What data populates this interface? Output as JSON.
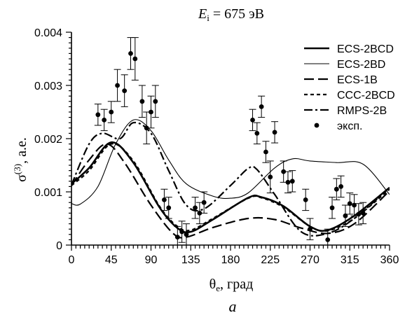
{
  "chart_data": {
    "type": "line",
    "title": {
      "main": "E",
      "sub": "i",
      "rest": " = 675 эВ"
    },
    "xlabel": {
      "main": "θ",
      "sub": "e",
      "rest": ", град"
    },
    "ylabel": {
      "main": "σ",
      "sup": "(3)",
      "rest": ", a.e."
    },
    "caption": "a",
    "xlim": [
      0,
      360
    ],
    "ylim": [
      0,
      0.004
    ],
    "xticks": [
      "0",
      "45",
      "90",
      "135",
      "180",
      "225",
      "270",
      "315",
      "360"
    ],
    "yticks": [
      "0",
      "0.001",
      "0.002",
      "0.003",
      "0.004"
    ],
    "legend_position": "top-right",
    "grid": false,
    "series": [
      {
        "name": "ECS-2BCD",
        "style": "thick-solid",
        "x": [
          0,
          20,
          45,
          70,
          100,
          120,
          135,
          160,
          200,
          215,
          240,
          270,
          290,
          320,
          360
        ],
        "y": [
          0.00115,
          0.00145,
          0.00193,
          0.00155,
          0.0007,
          0.00032,
          0.00025,
          0.00048,
          0.00089,
          0.0009,
          0.00073,
          0.00035,
          0.00028,
          0.00055,
          0.00108
        ]
      },
      {
        "name": "ECS-2BD",
        "style": "thin-solid",
        "x": [
          0,
          10,
          30,
          50,
          70,
          90,
          110,
          130,
          160,
          180,
          200,
          230,
          250,
          270,
          300,
          330,
          360
        ],
        "y": [
          0.00078,
          0.00077,
          0.0011,
          0.0019,
          0.00235,
          0.00215,
          0.0016,
          0.00115,
          0.00092,
          0.00088,
          0.00098,
          0.00145,
          0.00162,
          0.00158,
          0.00155,
          0.00152,
          0.00095
        ]
      },
      {
        "name": "ECS-1B",
        "style": "long-dash",
        "x": [
          0,
          20,
          40,
          60,
          90,
          115,
          130,
          160,
          200,
          230,
          260,
          290,
          320,
          360
        ],
        "y": [
          0.00112,
          0.0016,
          0.0019,
          0.00155,
          0.00075,
          0.00022,
          0.00015,
          0.00033,
          0.0005,
          0.00048,
          0.00032,
          0.00022,
          0.0004,
          0.00102
        ]
      },
      {
        "name": "CCC-2BCD",
        "style": "short-dash",
        "x": [
          0,
          20,
          45,
          70,
          100,
          120,
          135,
          160,
          200,
          215,
          240,
          270,
          290,
          320,
          360
        ],
        "y": [
          0.00112,
          0.0014,
          0.0019,
          0.00158,
          0.00072,
          0.00035,
          0.00028,
          0.0005,
          0.00088,
          0.00089,
          0.00071,
          0.00035,
          0.00027,
          0.0005,
          0.00105
        ]
      },
      {
        "name": "RMPS-2B",
        "style": "dash-dot",
        "x": [
          0,
          20,
          35,
          55,
          70,
          90,
          110,
          130,
          150,
          180,
          200,
          210,
          230,
          260,
          290,
          320,
          360
        ],
        "y": [
          0.00113,
          0.0019,
          0.0021,
          0.002,
          0.0023,
          0.0021,
          0.0014,
          0.00075,
          0.00068,
          0.00112,
          0.00144,
          0.00142,
          0.00095,
          0.00025,
          0.00022,
          0.0005,
          0.00108
        ]
      },
      {
        "name": "эксп.",
        "style": "points",
        "x": [
          30,
          37,
          45,
          52,
          60,
          67,
          72,
          80,
          85,
          90,
          95,
          105,
          110,
          120,
          125,
          130,
          140,
          145,
          150,
          205,
          210,
          215,
          220,
          225,
          230,
          240,
          245,
          250,
          265,
          270,
          290,
          295,
          300,
          305,
          310,
          315,
          320,
          325,
          330
        ],
        "y": [
          0.00245,
          0.00235,
          0.0025,
          0.003,
          0.0029,
          0.0036,
          0.0035,
          0.0027,
          0.0022,
          0.0025,
          0.0027,
          0.00085,
          0.0007,
          0.00015,
          0.00025,
          0.0002,
          0.0007,
          0.0006,
          0.0008,
          0.00235,
          0.0021,
          0.0026,
          0.00175,
          0.00128,
          0.00212,
          0.00138,
          0.00118,
          0.0012,
          0.00085,
          0.0003,
          0.0001,
          0.0007,
          0.00105,
          0.0011,
          0.00055,
          0.00078,
          0.00075,
          0.00058,
          0.0006
        ],
        "err": [
          0.0002,
          0.0002,
          0.0002,
          0.0003,
          0.0003,
          0.0003,
          0.0004,
          0.0003,
          0.0003,
          0.0003,
          0.0003,
          0.0002,
          0.0002,
          0.0002,
          0.0002,
          0.0002,
          0.0002,
          0.0002,
          0.0002,
          0.0002,
          0.0002,
          0.0002,
          0.0002,
          0.0003,
          0.0002,
          0.0002,
          0.0002,
          0.0002,
          0.0002,
          0.0002,
          0.0002,
          0.0002,
          0.0002,
          0.0002,
          0.0002,
          0.0002,
          0.0002,
          0.0002,
          0.0002
        ]
      }
    ]
  }
}
